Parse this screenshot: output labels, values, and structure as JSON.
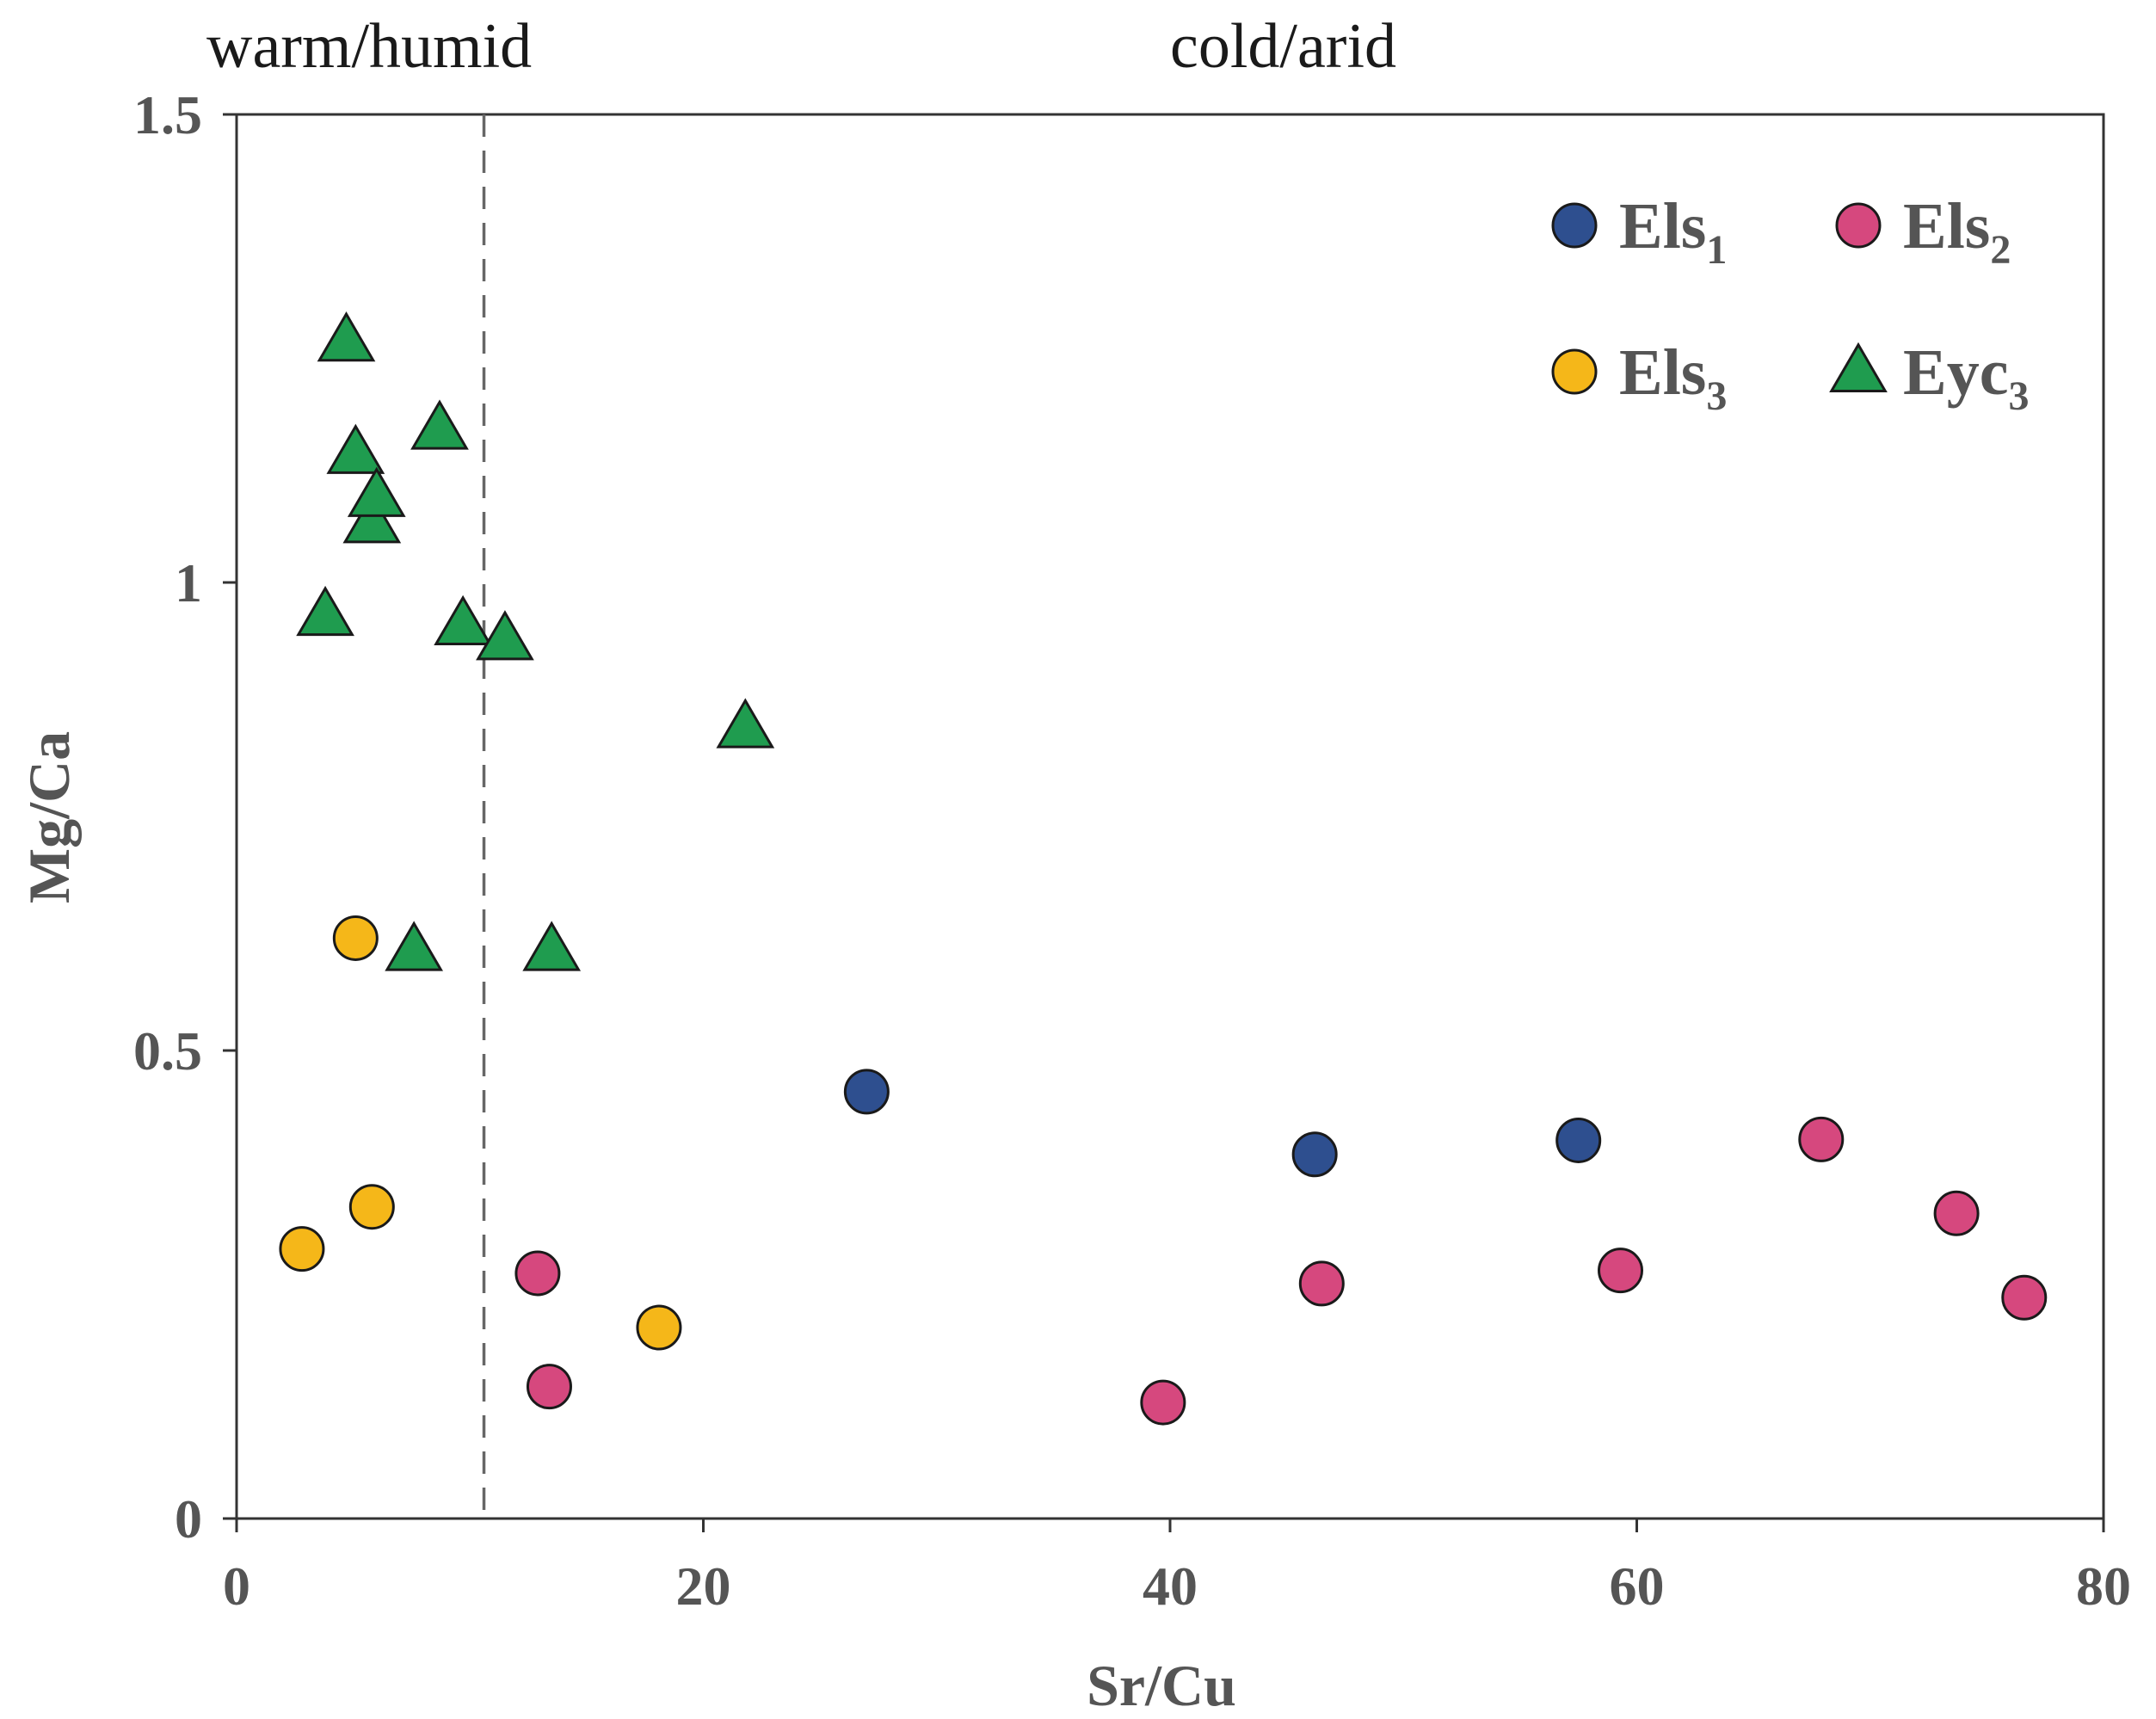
{
  "chart_data": {
    "type": "scatter",
    "title": "",
    "xlabel": "Sr/Cu",
    "ylabel": "Mg/Ca",
    "xlim": [
      0,
      80
    ],
    "ylim": [
      0,
      1.5
    ],
    "xticks": [
      0,
      20,
      40,
      60,
      80
    ],
    "yticks": [
      0,
      0.5,
      1,
      1.5
    ],
    "xtick_labels": [
      "0",
      "20",
      "40",
      "60",
      "80"
    ],
    "ytick_labels": [
      "0",
      "0.5",
      "1",
      "1.5"
    ],
    "grid": false,
    "divider": {
      "x": 10.6,
      "style": "dashed"
    },
    "regions": [
      {
        "label": "warm/humid",
        "side": "left"
      },
      {
        "label": "cold/arid",
        "side": "right"
      }
    ],
    "legend_position": "top-right",
    "series": [
      {
        "name": "Els1",
        "base": "Els",
        "subscript": "1",
        "marker": "circle",
        "color": "#2e4f8f",
        "points": [
          [
            27,
            0.456
          ],
          [
            46.2,
            0.389
          ],
          [
            57.5,
            0.404
          ]
        ]
      },
      {
        "name": "Els2",
        "base": "Els",
        "subscript": "2",
        "marker": "circle",
        "color": "#d6487e",
        "points": [
          [
            12.9,
            0.262
          ],
          [
            13.4,
            0.141
          ],
          [
            39.7,
            0.124
          ],
          [
            46.5,
            0.251
          ],
          [
            59.3,
            0.265
          ],
          [
            67.9,
            0.405
          ],
          [
            73.7,
            0.326
          ],
          [
            76.6,
            0.236
          ]
        ]
      },
      {
        "name": "Els3",
        "base": "Els",
        "subscript": "3",
        "marker": "circle",
        "color": "#f5b719",
        "points": [
          [
            2.8,
            0.288
          ],
          [
            5.1,
            0.62
          ],
          [
            5.8,
            0.333
          ],
          [
            18.1,
            0.204
          ]
        ]
      },
      {
        "name": "Eyc3",
        "base": "Eyc",
        "subscript": "3",
        "marker": "triangle",
        "color": "#1f9c4f",
        "points": [
          [
            4.7,
            1.258
          ],
          [
            5.1,
            1.138
          ],
          [
            5.8,
            1.064
          ],
          [
            6.0,
            1.092
          ],
          [
            8.7,
            1.164
          ],
          [
            3.8,
            0.965
          ],
          [
            9.7,
            0.955
          ],
          [
            11.5,
            0.939
          ],
          [
            21.8,
            0.845
          ],
          [
            7.6,
            0.607
          ],
          [
            13.5,
            0.607
          ]
        ]
      }
    ]
  }
}
